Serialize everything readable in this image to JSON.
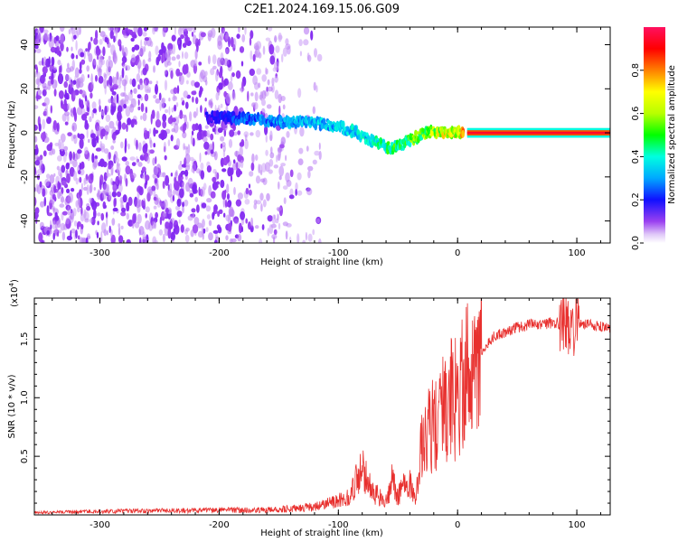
{
  "figure": {
    "title": "C2E1.2024.169.15.06.G09"
  },
  "colors": {
    "snr_line": "#e8302e",
    "line_bg": "#ffffff",
    "colormap": [
      "#e0c8f8",
      "#9a40f0",
      "#6a10f0",
      "#1010ff",
      "#00a8ff",
      "#00ffe0",
      "#00ff00",
      "#b8ff00",
      "#ffff00",
      "#ff8000",
      "#ff0000",
      "#ff1060"
    ]
  },
  "chart_data": [
    {
      "type": "heatmap",
      "xlabel": "Height of straight line (km)",
      "ylabel": "Frequency (Hz)",
      "xlim": [
        -355,
        128
      ],
      "ylim": [
        -50,
        48
      ],
      "xticks": [
        -300,
        -200,
        -100,
        0,
        100
      ],
      "xtick_labels": [
        "-300",
        "-200",
        "-100",
        "0",
        "100"
      ],
      "yticks": [
        -40,
        -20,
        0,
        20,
        40
      ],
      "ytick_labels": [
        "-40",
        "-20",
        "0",
        "20",
        "40"
      ],
      "colorbar": {
        "label": "Normalized spectral amplitude",
        "range": [
          0,
          1
        ],
        "ticks": [
          0.0,
          0.2,
          0.4,
          0.6,
          0.8
        ],
        "tick_labels": [
          "0.0",
          "0.2",
          "0.4",
          "0.6",
          "0.8"
        ]
      },
      "signal_track": {
        "x": [
          -205,
          -190,
          -170,
          -150,
          -130,
          -110,
          -95,
          -85,
          -75,
          -65,
          -55,
          -45,
          -35,
          -25,
          -15,
          -5,
          5,
          20,
          60,
          100,
          128
        ],
        "y": [
          7,
          7,
          6,
          5,
          5,
          4,
          2,
          0,
          -3,
          -5,
          -7,
          -5,
          -2,
          0,
          1,
          0,
          0,
          0,
          0,
          0,
          0
        ],
        "amplitude": [
          0.25,
          0.3,
          0.35,
          0.38,
          0.4,
          0.42,
          0.42,
          0.45,
          0.45,
          0.5,
          0.55,
          0.55,
          0.6,
          0.65,
          0.7,
          0.72,
          0.8,
          0.9,
          0.9,
          0.9,
          0.9
        ]
      }
    },
    {
      "type": "line",
      "xlabel": "Height of straight line (km)",
      "ylabel": "SNR (10 * v/v)",
      "multiplier_label": "(x10",
      "multiplier_exp": "4",
      "xlim": [
        -355,
        128
      ],
      "ylim": [
        0,
        18500
      ],
      "xticks": [
        -300,
        -200,
        -100,
        0,
        100
      ],
      "xtick_labels": [
        "-300",
        "-200",
        "-100",
        "0",
        "100"
      ],
      "yticks": [
        5000,
        10000,
        15000
      ],
      "ytick_labels": [
        "0.5",
        "1.0",
        "1.5"
      ],
      "series": [
        {
          "x": [
            -355,
            -300,
            -250,
            -200,
            -150,
            -120,
            -100,
            -90,
            -85,
            -80,
            -75,
            -70,
            -60,
            -55,
            -50,
            -45,
            -40,
            -35,
            -30,
            -25,
            -20,
            -15,
            -10,
            -5,
            0,
            5,
            10,
            15,
            20,
            25,
            30,
            40,
            50,
            60,
            70,
            80,
            90,
            95,
            100,
            110,
            128
          ],
          "y": [
            200,
            300,
            350,
            400,
            450,
            700,
            1200,
            1500,
            3000,
            4200,
            2500,
            1800,
            1200,
            2800,
            1500,
            3200,
            2500,
            1200,
            6000,
            8000,
            7500,
            9000,
            8500,
            10500,
            9500,
            11500,
            12500,
            11000,
            13800,
            14500,
            15200,
            15600,
            16000,
            16200,
            16300,
            16400,
            16400,
            15600,
            16300,
            16200,
            16000
          ]
        }
      ]
    }
  ]
}
